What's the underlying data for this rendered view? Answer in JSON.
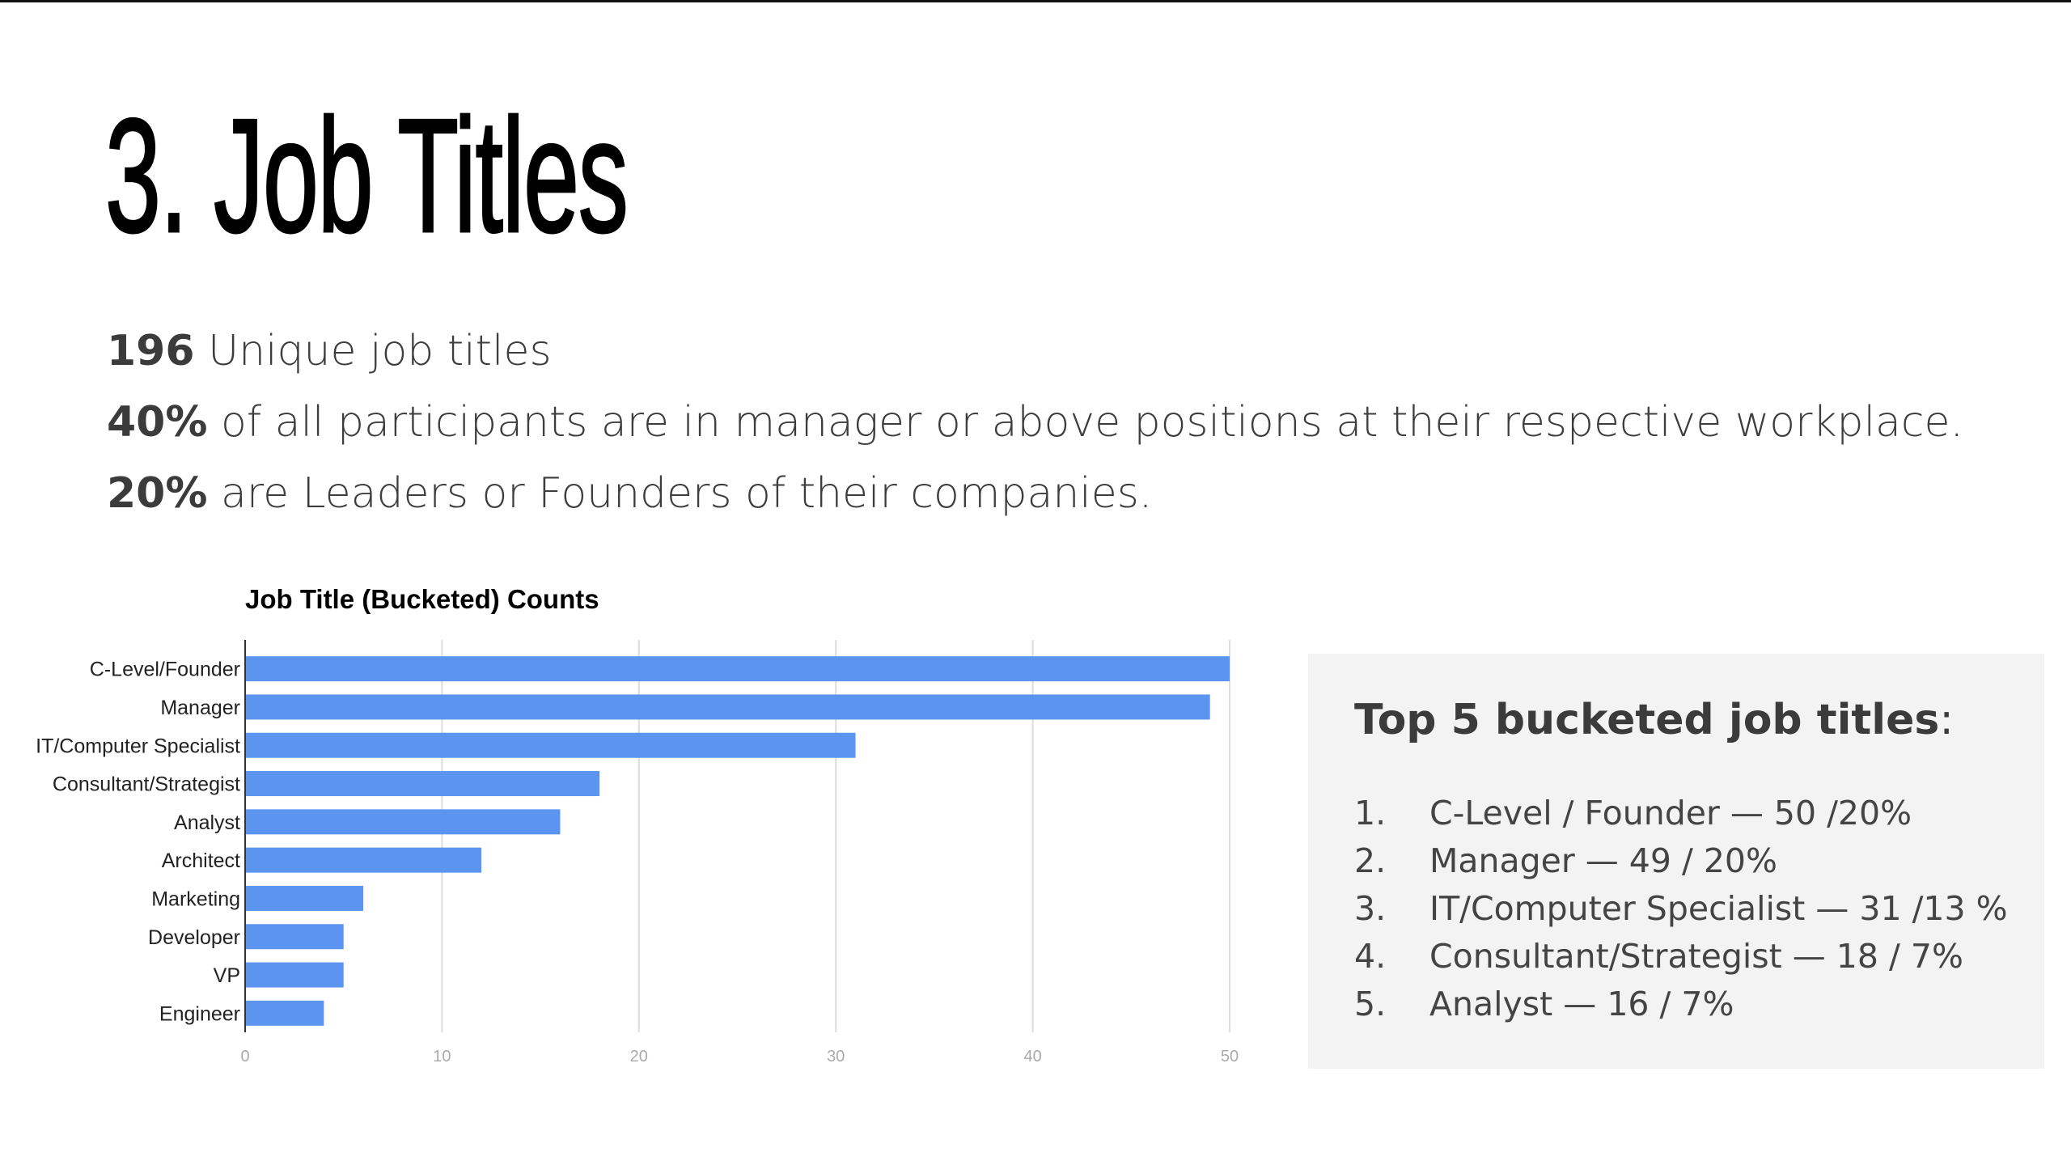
{
  "slide": {
    "title": "3. Job Titles"
  },
  "stats": [
    {
      "number": "196",
      "text": " Unique job titles"
    },
    {
      "number": "40%",
      "text": " of all participants are in manager or above positions at their respective workplace."
    },
    {
      "number": "20%",
      "text": " are Leaders or Founders of their companies."
    }
  ],
  "top5": {
    "heading": "Top 5 bucketed job titles",
    "heading_suffix": ":",
    "items": [
      {
        "num": "1.",
        "text": "C-Level / Founder — 50 /20%"
      },
      {
        "num": "2.",
        "text": "Manager — 49 / 20%"
      },
      {
        "num": "3.",
        "text": "IT/Computer Specialist — 31 /13 %"
      },
      {
        "num": "4.",
        "text": "Consultant/Strategist — 18 / 7%"
      },
      {
        "num": "5.",
        "text": "Analyst — 16 / 7%"
      }
    ]
  },
  "chart_data": {
    "type": "bar",
    "orientation": "horizontal",
    "title": "Job Title (Bucketed) Counts",
    "xlabel": "",
    "ylabel": "",
    "categories": [
      "C-Level/Founder",
      "Manager",
      "IT/Computer Specialist",
      "Consultant/Strategist",
      "Analyst",
      "Architect",
      "Marketing",
      "Developer",
      "VP",
      "Engineer"
    ],
    "values": [
      50,
      49,
      31,
      18,
      16,
      12,
      6,
      5,
      5,
      4
    ],
    "xlim": [
      0,
      50
    ],
    "x_ticks": [
      0,
      10,
      20,
      30,
      40,
      50
    ],
    "grid": true,
    "legend": "none",
    "bar_color": "#5b95f0",
    "grid_color": "#dddddd"
  }
}
